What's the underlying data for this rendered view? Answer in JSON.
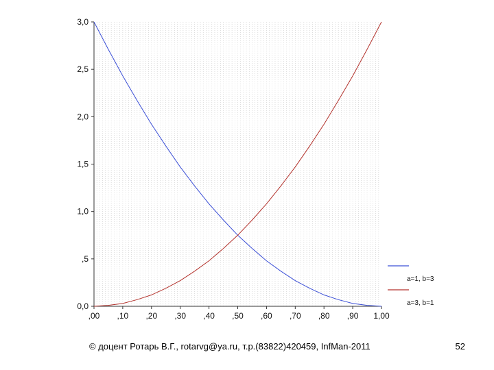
{
  "chart_data": {
    "type": "line",
    "x": [
      0,
      0.05,
      0.1,
      0.15,
      0.2,
      0.25,
      0.3,
      0.35,
      0.4,
      0.45,
      0.5,
      0.55,
      0.6,
      0.65,
      0.7,
      0.75,
      0.8,
      0.85,
      0.9,
      0.95,
      1.0
    ],
    "series": [
      {
        "name": "a=1, b=3",
        "color": "#3b4fd6",
        "values": [
          3.0,
          2.71,
          2.43,
          2.17,
          1.92,
          1.69,
          1.47,
          1.27,
          1.08,
          0.91,
          0.75,
          0.61,
          0.48,
          0.37,
          0.27,
          0.19,
          0.12,
          0.07,
          0.03,
          0.01,
          0.0
        ]
      },
      {
        "name": "a=3, b=1",
        "color": "#b3322c",
        "values": [
          0.0,
          0.01,
          0.03,
          0.07,
          0.12,
          0.19,
          0.27,
          0.37,
          0.48,
          0.61,
          0.75,
          0.91,
          1.08,
          1.27,
          1.47,
          1.69,
          1.92,
          2.17,
          2.43,
          2.71,
          3.0
        ]
      }
    ],
    "xlim": [
      0,
      1
    ],
    "ylim": [
      0,
      3
    ],
    "x_ticks": [
      ",00",
      ",10",
      ",20",
      ",30",
      ",40",
      ",50",
      ",60",
      ",70",
      ",80",
      ",90",
      "1,00"
    ],
    "y_ticks": [
      "0,0",
      ",5",
      "1,0",
      "1,5",
      "2,0",
      "2,5",
      "3,0"
    ],
    "grid": "vertical dotted",
    "legend_position": "bottom-right"
  },
  "footer": {
    "text": "© доцент Ротарь В.Г., rotarvg@ya.ru, т.р.(83822)420459, InfMan-2011",
    "page_number": "52"
  }
}
